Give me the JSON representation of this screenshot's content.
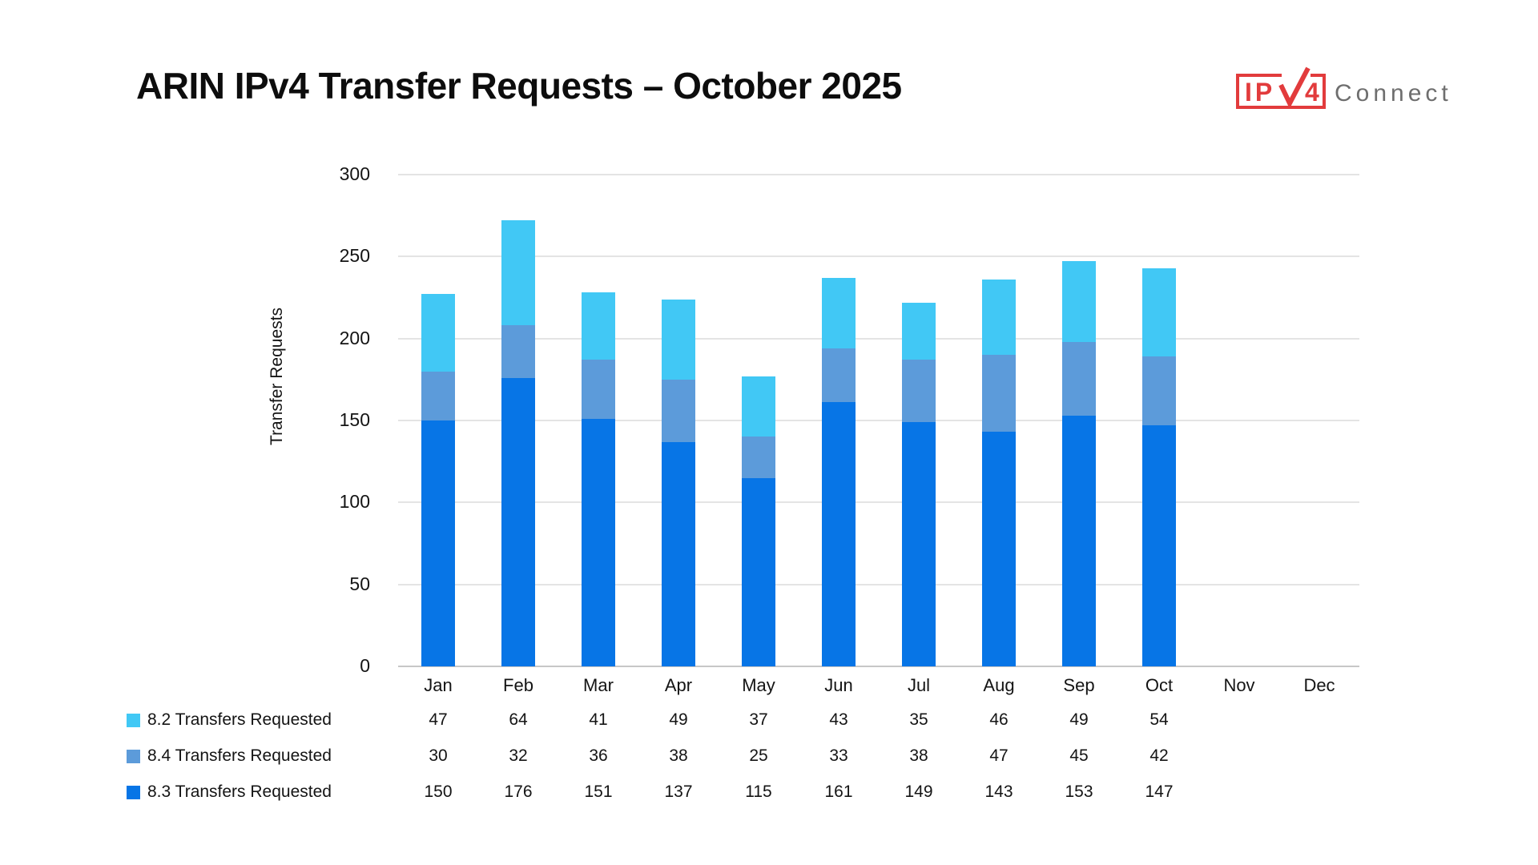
{
  "title": "ARIN IPv4 Transfer Requests – October 2025",
  "logo": {
    "prefix": "IP",
    "digit": "4",
    "suffix": "Connect",
    "red": "#e23b3c",
    "gray": "#6e6e6e"
  },
  "colors": {
    "grid": "#e4e4e4",
    "baseline": "#c7c7c7",
    "text": "#141414"
  },
  "chart_data": {
    "type": "bar",
    "stacked": true,
    "title": "ARIN IPv4 Transfer Requests – October 2025",
    "xlabel": "",
    "ylabel": "Transfer Requests",
    "ylim": [
      0,
      300
    ],
    "yticks": [
      0,
      50,
      100,
      150,
      200,
      250,
      300
    ],
    "grid": true,
    "legend_position": "bottom-left, table layout under x-axis",
    "categories": [
      "Jan",
      "Feb",
      "Mar",
      "Apr",
      "May",
      "Jun",
      "Jul",
      "Aug",
      "Sep",
      "Oct",
      "Nov",
      "Dec"
    ],
    "series": [
      {
        "name": "8.2 Transfers Requested",
        "color": "#41c8f5",
        "values": [
          47,
          64,
          41,
          49,
          37,
          43,
          35,
          46,
          49,
          54,
          null,
          null
        ]
      },
      {
        "name": "8.4 Transfers Requested",
        "color": "#5c9bda",
        "values": [
          30,
          32,
          36,
          38,
          25,
          33,
          38,
          47,
          45,
          42,
          null,
          null
        ]
      },
      {
        "name": "8.3 Transfers Requested",
        "color": "#0775e6",
        "values": [
          150,
          176,
          151,
          137,
          115,
          161,
          149,
          143,
          153,
          147,
          null,
          null
        ]
      }
    ],
    "stack_order_bottom_to_top": [
      "8.3 Transfers Requested",
      "8.4 Transfers Requested",
      "8.2 Transfers Requested"
    ],
    "totals": [
      227,
      272,
      228,
      224,
      177,
      237,
      222,
      236,
      247,
      243,
      null,
      null
    ]
  }
}
